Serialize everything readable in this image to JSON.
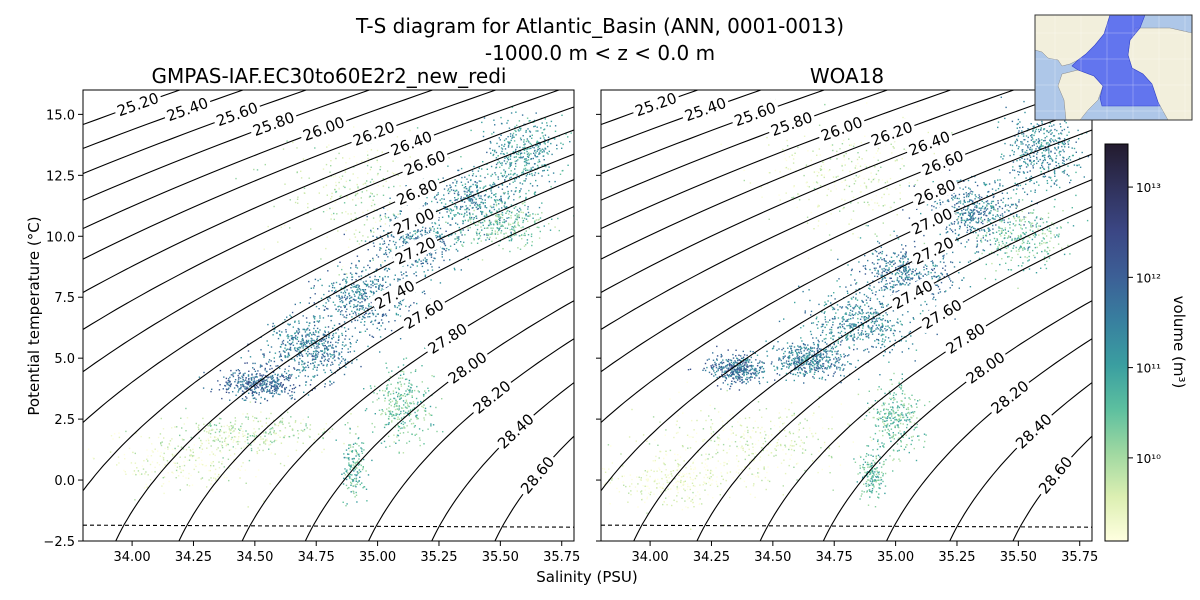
{
  "title": "T-S diagram for Atlantic_Basin (ANN, 0001-0013)",
  "subtitle": "-1000.0 m < z < 0.0 m",
  "xlabel": "Salinity (PSU)",
  "ylabel": "Potential temperature (°C)",
  "colorbar": {
    "label": "volume (m³)",
    "scale": "log",
    "range": [
      1200000000.0,
      30000000000000.0
    ],
    "ticks": [
      {
        "value": 10000000000.0,
        "label": "10¹⁰"
      },
      {
        "value": 100000000000.0,
        "label": "10¹¹"
      },
      {
        "value": 1000000000000.0,
        "label": "10¹²"
      },
      {
        "value": 10000000000000.0,
        "label": "10¹³"
      }
    ],
    "colors": [
      "#ffffe0",
      "#dcefb2",
      "#9fd8a1",
      "#5cbf9f",
      "#3a9ea0",
      "#387f9f",
      "#3c5f96",
      "#3b4785",
      "#30325c",
      "#231b2e"
    ]
  },
  "map": {
    "basin_color": "#5566ee",
    "land_color": "#f2efdc",
    "ocean_color": "#aec7e8"
  },
  "freezing_line_temp": -1.85,
  "chart_data": [
    {
      "type": "heatmap",
      "panel": "left",
      "title": "GMPAS-IAF.EC30to60E2r2_new_redi",
      "xlim": [
        33.8,
        35.8
      ],
      "ylim": [
        -2.5,
        16
      ],
      "xticks": [
        "34.00",
        "34.25",
        "34.50",
        "34.75",
        "35.00",
        "35.25",
        "35.50",
        "35.75"
      ],
      "yticks": [
        "−2.5",
        "0.0",
        "2.5",
        "5.0",
        "7.5",
        "10.0",
        "12.5",
        "15.0"
      ],
      "density_contours": [
        "25.20",
        "25.40",
        "25.60",
        "25.80",
        "26.00",
        "26.20",
        "26.40",
        "26.60",
        "26.80",
        "27.00",
        "27.20",
        "27.40",
        "27.60",
        "27.80",
        "28.00",
        "28.20",
        "28.40",
        "28.60"
      ],
      "clusters": [
        {
          "s": 34.52,
          "t": 4.0,
          "ds": 0.16,
          "dt": 0.6,
          "n": 420,
          "level": 0.62
        },
        {
          "s": 34.72,
          "t": 5.5,
          "ds": 0.18,
          "dt": 1.2,
          "n": 520,
          "level": 0.55
        },
        {
          "s": 34.95,
          "t": 7.5,
          "ds": 0.2,
          "dt": 1.3,
          "n": 520,
          "level": 0.55
        },
        {
          "s": 35.15,
          "t": 9.8,
          "ds": 0.18,
          "dt": 1.3,
          "n": 480,
          "level": 0.55
        },
        {
          "s": 35.4,
          "t": 11.5,
          "ds": 0.2,
          "dt": 1.3,
          "n": 440,
          "level": 0.5
        },
        {
          "s": 35.6,
          "t": 13.5,
          "ds": 0.15,
          "dt": 1.4,
          "n": 380,
          "level": 0.45
        },
        {
          "s": 35.1,
          "t": 3.0,
          "ds": 0.12,
          "dt": 1.6,
          "n": 320,
          "level": 0.3
        },
        {
          "s": 34.9,
          "t": 0.5,
          "ds": 0.05,
          "dt": 1.2,
          "n": 160,
          "level": 0.35
        },
        {
          "s": 34.5,
          "t": 2.0,
          "ds": 0.3,
          "dt": 0.8,
          "n": 300,
          "level": 0.15
        },
        {
          "s": 34.2,
          "t": 0.8,
          "ds": 0.35,
          "dt": 1.2,
          "n": 260,
          "level": 0.08
        },
        {
          "s": 34.9,
          "t": 12.0,
          "ds": 0.3,
          "dt": 2.5,
          "n": 260,
          "level": 0.15
        },
        {
          "s": 35.5,
          "t": 10.5,
          "ds": 0.2,
          "dt": 1.0,
          "n": 260,
          "level": 0.3
        }
      ]
    },
    {
      "type": "heatmap",
      "panel": "right",
      "title": "WOA18",
      "xlim": [
        33.8,
        35.8
      ],
      "ylim": [
        -2.5,
        16
      ],
      "xticks": [
        "34.00",
        "34.25",
        "34.50",
        "34.75",
        "35.00",
        "35.25",
        "35.50",
        "35.75"
      ],
      "yticks": [
        "−2.5",
        "0.0",
        "2.5",
        "5.0",
        "7.5",
        "10.0",
        "12.5",
        "15.0"
      ],
      "density_contours": [
        "25.20",
        "25.40",
        "25.60",
        "25.80",
        "26.00",
        "26.20",
        "26.40",
        "26.60",
        "26.80",
        "27.00",
        "27.20",
        "27.40",
        "27.60",
        "27.80",
        "28.00",
        "28.20",
        "28.40",
        "28.60"
      ],
      "clusters": [
        {
          "s": 34.35,
          "t": 4.6,
          "ds": 0.12,
          "dt": 0.6,
          "n": 380,
          "level": 0.6
        },
        {
          "s": 34.65,
          "t": 5.0,
          "ds": 0.15,
          "dt": 0.8,
          "n": 460,
          "level": 0.55
        },
        {
          "s": 34.85,
          "t": 6.5,
          "ds": 0.2,
          "dt": 1.2,
          "n": 480,
          "level": 0.5
        },
        {
          "s": 35.05,
          "t": 8.5,
          "ds": 0.2,
          "dt": 1.2,
          "n": 500,
          "level": 0.55
        },
        {
          "s": 35.3,
          "t": 11.0,
          "ds": 0.2,
          "dt": 1.3,
          "n": 500,
          "level": 0.55
        },
        {
          "s": 35.6,
          "t": 13.5,
          "ds": 0.16,
          "dt": 1.4,
          "n": 420,
          "level": 0.5
        },
        {
          "s": 35.0,
          "t": 2.5,
          "ds": 0.1,
          "dt": 1.5,
          "n": 300,
          "level": 0.3
        },
        {
          "s": 34.9,
          "t": 0.2,
          "ds": 0.05,
          "dt": 1.0,
          "n": 160,
          "level": 0.35
        },
        {
          "s": 34.4,
          "t": 1.5,
          "ds": 0.4,
          "dt": 1.5,
          "n": 380,
          "level": 0.08
        },
        {
          "s": 34.1,
          "t": 0.0,
          "ds": 0.3,
          "dt": 1.0,
          "n": 300,
          "level": 0.04
        },
        {
          "s": 34.8,
          "t": 12.5,
          "ds": 0.35,
          "dt": 2.5,
          "n": 320,
          "level": 0.1
        },
        {
          "s": 35.5,
          "t": 10.0,
          "ds": 0.2,
          "dt": 1.2,
          "n": 300,
          "level": 0.3
        }
      ]
    }
  ]
}
